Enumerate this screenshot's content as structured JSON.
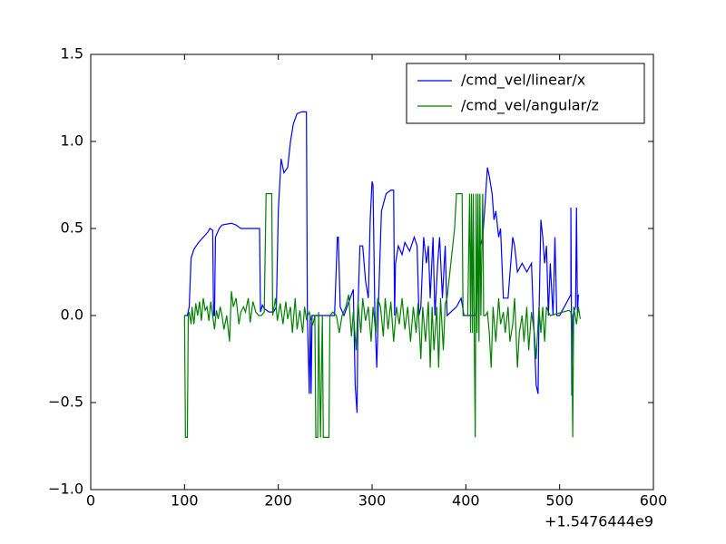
{
  "chart_data": {
    "type": "line",
    "x_offset_label": "+1.5476444e9",
    "xlim": [
      0,
      600
    ],
    "xticks": [
      0,
      100,
      200,
      300,
      400,
      500,
      600
    ],
    "ylim": [
      -1.0,
      1.5
    ],
    "yticks": [
      {
        "value": -1.0,
        "label": "−1.0"
      },
      {
        "value": -0.5,
        "label": "−0.5"
      },
      {
        "value": 0.0,
        "label": "0.0"
      },
      0.5,
      {
        "value": 1.0,
        "label": "1.0"
      },
      1.5
    ],
    "legend": "upper right",
    "series": [
      {
        "name": "/cmd_vel/linear/x",
        "color": "#0000ff",
        "x": [
          100,
          103,
          105,
          107,
          110,
          115,
          120,
          125,
          127,
          130,
          131,
          132,
          133,
          137,
          140,
          150,
          155,
          160,
          170,
          175,
          180,
          181,
          183,
          185,
          190,
          195,
          198,
          200,
          203,
          206,
          210,
          213,
          216,
          220,
          225,
          230,
          231,
          233,
          234,
          235,
          236,
          260,
          262,
          263,
          264,
          266,
          270,
          280,
          282,
          284,
          285,
          287,
          290,
          293,
          296,
          298,
          300,
          301,
          303,
          305,
          307,
          310,
          315,
          320,
          323,
          324,
          325,
          328,
          332,
          335,
          340,
          345,
          348,
          350,
          352,
          355,
          358,
          360,
          362,
          365,
          367,
          370,
          372,
          375,
          378,
          380,
          390,
          395,
          398,
          410,
          412,
          415,
          418,
          420,
          423,
          425,
          428,
          430,
          432,
          435,
          437,
          440,
          445,
          450,
          452,
          455,
          460,
          465,
          470,
          472,
          475,
          477,
          478,
          480,
          482,
          484,
          486,
          488,
          490,
          493,
          495,
          497,
          500,
          510,
          512,
          512,
          513,
          514,
          517,
          518,
          519,
          520
        ],
        "values": [
          0,
          0,
          0.05,
          0.33,
          0.38,
          0.42,
          0.45,
          0.48,
          0.5,
          0.49,
          0,
          0,
          0.45,
          0.5,
          0.52,
          0.53,
          0.52,
          0.5,
          0.5,
          0.5,
          0.5,
          0.02,
          0.06,
          0.04,
          0.02,
          0.02,
          0.05,
          0.6,
          0.9,
          0.82,
          0.85,
          1.0,
          1.1,
          1.16,
          1.17,
          1.17,
          0,
          -0.45,
          0,
          -0.45,
          0,
          0,
          0.3,
          0.45,
          0.45,
          0.05,
          0,
          0.15,
          -0.4,
          -0.56,
          0.05,
          0.4,
          0.4,
          0.2,
          0.1,
          0.55,
          0.77,
          0.75,
          0,
          -0.3,
          0.1,
          0.6,
          0.7,
          0.72,
          0.72,
          0,
          0.3,
          0.4,
          0.35,
          0.42,
          0.37,
          0.45,
          0.4,
          0,
          0.05,
          0.45,
          0.3,
          0.4,
          0.1,
          0.45,
          0,
          0.3,
          0.45,
          0.1,
          0.4,
          0,
          0.05,
          0.1,
          0,
          0,
          0.1,
          0.4,
          0.45,
          0.6,
          0.85,
          0.8,
          0.7,
          0.55,
          0.6,
          0.45,
          0.5,
          0.1,
          0.1,
          0.45,
          0.4,
          0.25,
          0.3,
          0.25,
          0.3,
          0,
          -0.4,
          -0.45,
          0,
          0.55,
          0.45,
          0.3,
          0.4,
          0,
          0.3,
          0,
          0.45,
          0,
          0,
          0.1,
          0.12,
          0.62,
          -0.46,
          0,
          0.05,
          0.62,
          0,
          0.12
        ]
      },
      {
        "name": "/cmd_vel/angular/z",
        "color": "#008000",
        "x": [
          100,
          101,
          103,
          104,
          105,
          107,
          108,
          110,
          112,
          114,
          116,
          118,
          120,
          122,
          124,
          126,
          128,
          130,
          132,
          134,
          136,
          138,
          140,
          142,
          145,
          148,
          150,
          152,
          155,
          158,
          160,
          163,
          165,
          168,
          170,
          173,
          176,
          179,
          182,
          185,
          187,
          193,
          194,
          197,
          199,
          202,
          205,
          208,
          210,
          213,
          215,
          218,
          220,
          223,
          226,
          228,
          230,
          233,
          235,
          237,
          239,
          240,
          242,
          243,
          245,
          247,
          248,
          254,
          255,
          258,
          262,
          265,
          268,
          272,
          275,
          278,
          280,
          283,
          285,
          288,
          290,
          293,
          296,
          299,
          301,
          304,
          306,
          309,
          312,
          314,
          317,
          320,
          323,
          326,
          329,
          332,
          335,
          338,
          341,
          344,
          347,
          349,
          352,
          354,
          357,
          360,
          362,
          364,
          366,
          369,
          371,
          373,
          376,
          378,
          380,
          388,
          390,
          396,
          397,
          402,
          404,
          405,
          406,
          407,
          408,
          409,
          410,
          411,
          412,
          413,
          414,
          415,
          416,
          418,
          419,
          421,
          423,
          425,
          427,
          429,
          432,
          435,
          437,
          440,
          442,
          445,
          447,
          450,
          452,
          455,
          457,
          460,
          462,
          465,
          467,
          470,
          473,
          475,
          478,
          480,
          482,
          484,
          486,
          488,
          490,
          510,
          512,
          513,
          514,
          515,
          518,
          520,
          522
        ],
        "values": [
          0,
          -0.7,
          -0.7,
          0,
          0.02,
          -0.05,
          0.05,
          -0.05,
          0.07,
          0,
          0.08,
          -0.03,
          0.1,
          0.03,
          0.05,
          -0.03,
          0.08,
          0,
          -0.08,
          0.03,
          -0.02,
          0.05,
          0,
          -0.08,
          0,
          -0.15,
          0.14,
          0.05,
          0.1,
          -0.05,
          0.02,
          0.05,
          0.02,
          0.1,
          -0.04,
          0.08,
          0.02,
          0,
          0,
          0.02,
          0.7,
          0.7,
          0,
          0.1,
          -0.03,
          0.07,
          -0.05,
          0.08,
          -0.02,
          0.05,
          -0.1,
          0.1,
          -0.08,
          0.03,
          -0.1,
          0.05,
          -0.02,
          0.02,
          -0.02,
          -0.05,
          0,
          -0.7,
          -0.7,
          0.02,
          -0.7,
          0,
          -0.7,
          -0.7,
          0,
          0.02,
          0,
          -0.1,
          0,
          0.05,
          0.12,
          -0.12,
          0.02,
          -0.2,
          0.08,
          -0.1,
          0.1,
          -0.03,
          0.05,
          -0.15,
          0.05,
          -0.1,
          0.1,
          0.05,
          -0.12,
          0.1,
          -0.08,
          0.08,
          -0.15,
          0.05,
          -0.05,
          0.1,
          -0.08,
          0.05,
          -0.15,
          0.05,
          -0.1,
          0.07,
          -0.25,
          0.05,
          -0.15,
          0.08,
          -0.3,
          0.05,
          -0.2,
          0.05,
          -0.3,
          0.1,
          -0.2,
          0.07,
          0.1,
          0.5,
          0.7,
          0.7,
          0,
          0,
          0.7,
          -0.1,
          0.7,
          -0.1,
          0.7,
          -0.15,
          -0.7,
          0.7,
          -0.1,
          0.7,
          -0.15,
          0.7,
          0,
          0.7,
          0,
          0,
          0.02,
          -0.1,
          -0.3,
          0.05,
          -0.15,
          0.1,
          -0.05,
          0.02,
          -0.1,
          0.05,
          -0.15,
          -0.05,
          0.1,
          -0.3,
          -0.1,
          0,
          -0.15,
          0.05,
          -0.2,
          0.02,
          -0.1,
          -0.25,
          0.05,
          -0.1,
          0.05,
          -0.15,
          0.05,
          0.02,
          0,
          0.03,
          0.02,
          -0.1,
          -0.7,
          0.05,
          -0.05,
          0.05,
          -0.02
        ]
      }
    ]
  }
}
